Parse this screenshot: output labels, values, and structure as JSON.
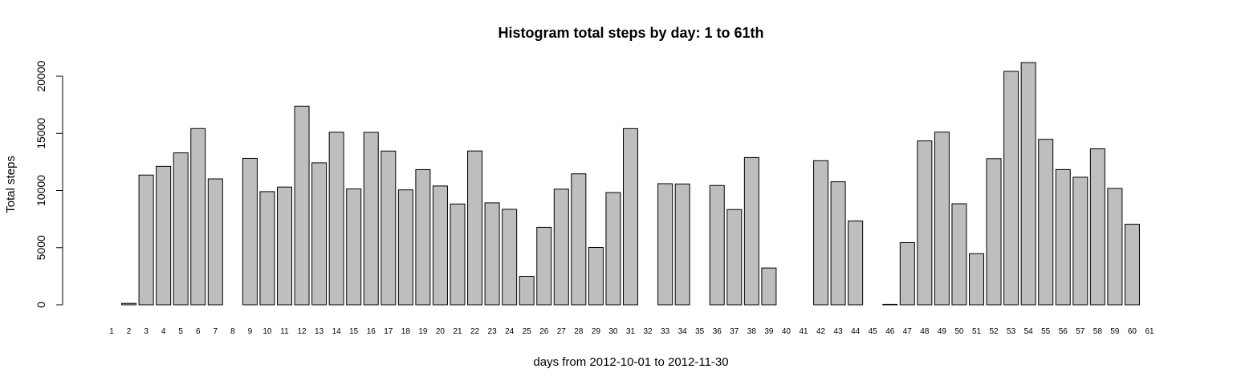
{
  "chart_data": {
    "type": "bar",
    "title": "Histogram total steps by day: 1 to 61th",
    "xlabel": "days from 2012-10-01 to 2012-11-30",
    "ylabel": "Total steps",
    "ylim": [
      0,
      21194
    ],
    "yticks": [
      0,
      5000,
      10000,
      15000,
      20000
    ],
    "categories": [
      "1",
      "2",
      "3",
      "4",
      "5",
      "6",
      "7",
      "8",
      "9",
      "10",
      "11",
      "12",
      "13",
      "14",
      "15",
      "16",
      "17",
      "18",
      "19",
      "20",
      "21",
      "22",
      "23",
      "24",
      "25",
      "26",
      "27",
      "28",
      "29",
      "30",
      "31",
      "32",
      "33",
      "34",
      "35",
      "36",
      "37",
      "38",
      "39",
      "40",
      "41",
      "42",
      "43",
      "44",
      "45",
      "46",
      "47",
      "48",
      "49",
      "50",
      "51",
      "52",
      "53",
      "54",
      "55",
      "56",
      "57",
      "58",
      "59",
      "60",
      "61"
    ],
    "values": [
      0,
      126,
      11352,
      12116,
      13294,
      15420,
      11015,
      0,
      12811,
      9900,
      10304,
      17382,
      12426,
      15098,
      10139,
      15084,
      13452,
      10056,
      11829,
      10395,
      8821,
      13460,
      8918,
      8355,
      2492,
      6778,
      10119,
      11458,
      5018,
      9819,
      15414,
      0,
      10600,
      10571,
      0,
      10439,
      8334,
      12883,
      3219,
      0,
      0,
      12608,
      10765,
      7336,
      0,
      41,
      5441,
      14339,
      15110,
      8841,
      4472,
      12787,
      20427,
      21194,
      14478,
      11834,
      11162,
      13646,
      10183,
      7047,
      0
    ],
    "colors": {
      "bar": "#bebebe",
      "stroke": "#000000"
    },
    "grid": false,
    "legend": "none"
  }
}
